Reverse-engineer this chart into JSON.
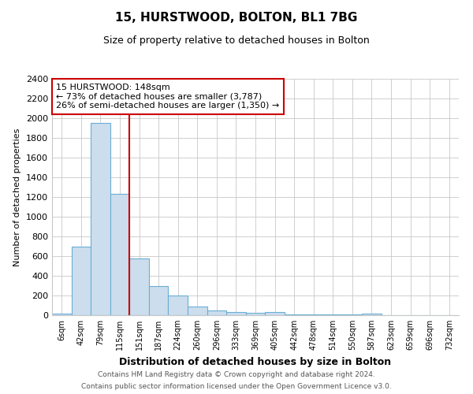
{
  "title1": "15, HURSTWOOD, BOLTON, BL1 7BG",
  "title2": "Size of property relative to detached houses in Bolton",
  "xlabel": "Distribution of detached houses by size in Bolton",
  "ylabel": "Number of detached properties",
  "categories": [
    "6sqm",
    "42sqm",
    "79sqm",
    "115sqm",
    "151sqm",
    "187sqm",
    "224sqm",
    "260sqm",
    "296sqm",
    "333sqm",
    "369sqm",
    "405sqm",
    "442sqm",
    "478sqm",
    "514sqm",
    "550sqm",
    "587sqm",
    "623sqm",
    "659sqm",
    "696sqm",
    "732sqm"
  ],
  "values": [
    20,
    700,
    1950,
    1230,
    580,
    300,
    200,
    90,
    50,
    30,
    25,
    30,
    10,
    8,
    5,
    5,
    15,
    3,
    3,
    3,
    3
  ],
  "bar_color": "#ccdded",
  "bar_edge_color": "#6aaed6",
  "red_line_x": 3.5,
  "red_line_color": "#cc0000",
  "annotation_line1": "15 HURSTWOOD: 148sqm",
  "annotation_line2": "← 73% of detached houses are smaller (3,787)",
  "annotation_line3": "26% of semi-detached houses are larger (1,350) →",
  "annotation_box_color": "#ffffff",
  "annotation_box_edge": "#cc0000",
  "ylim": [
    0,
    2400
  ],
  "yticks": [
    0,
    200,
    400,
    600,
    800,
    1000,
    1200,
    1400,
    1600,
    1800,
    2000,
    2200,
    2400
  ],
  "footer1": "Contains HM Land Registry data © Crown copyright and database right 2024.",
  "footer2": "Contains public sector information licensed under the Open Government Licence v3.0.",
  "bg_color": "#ffffff",
  "grid_color": "#c8c8c8"
}
